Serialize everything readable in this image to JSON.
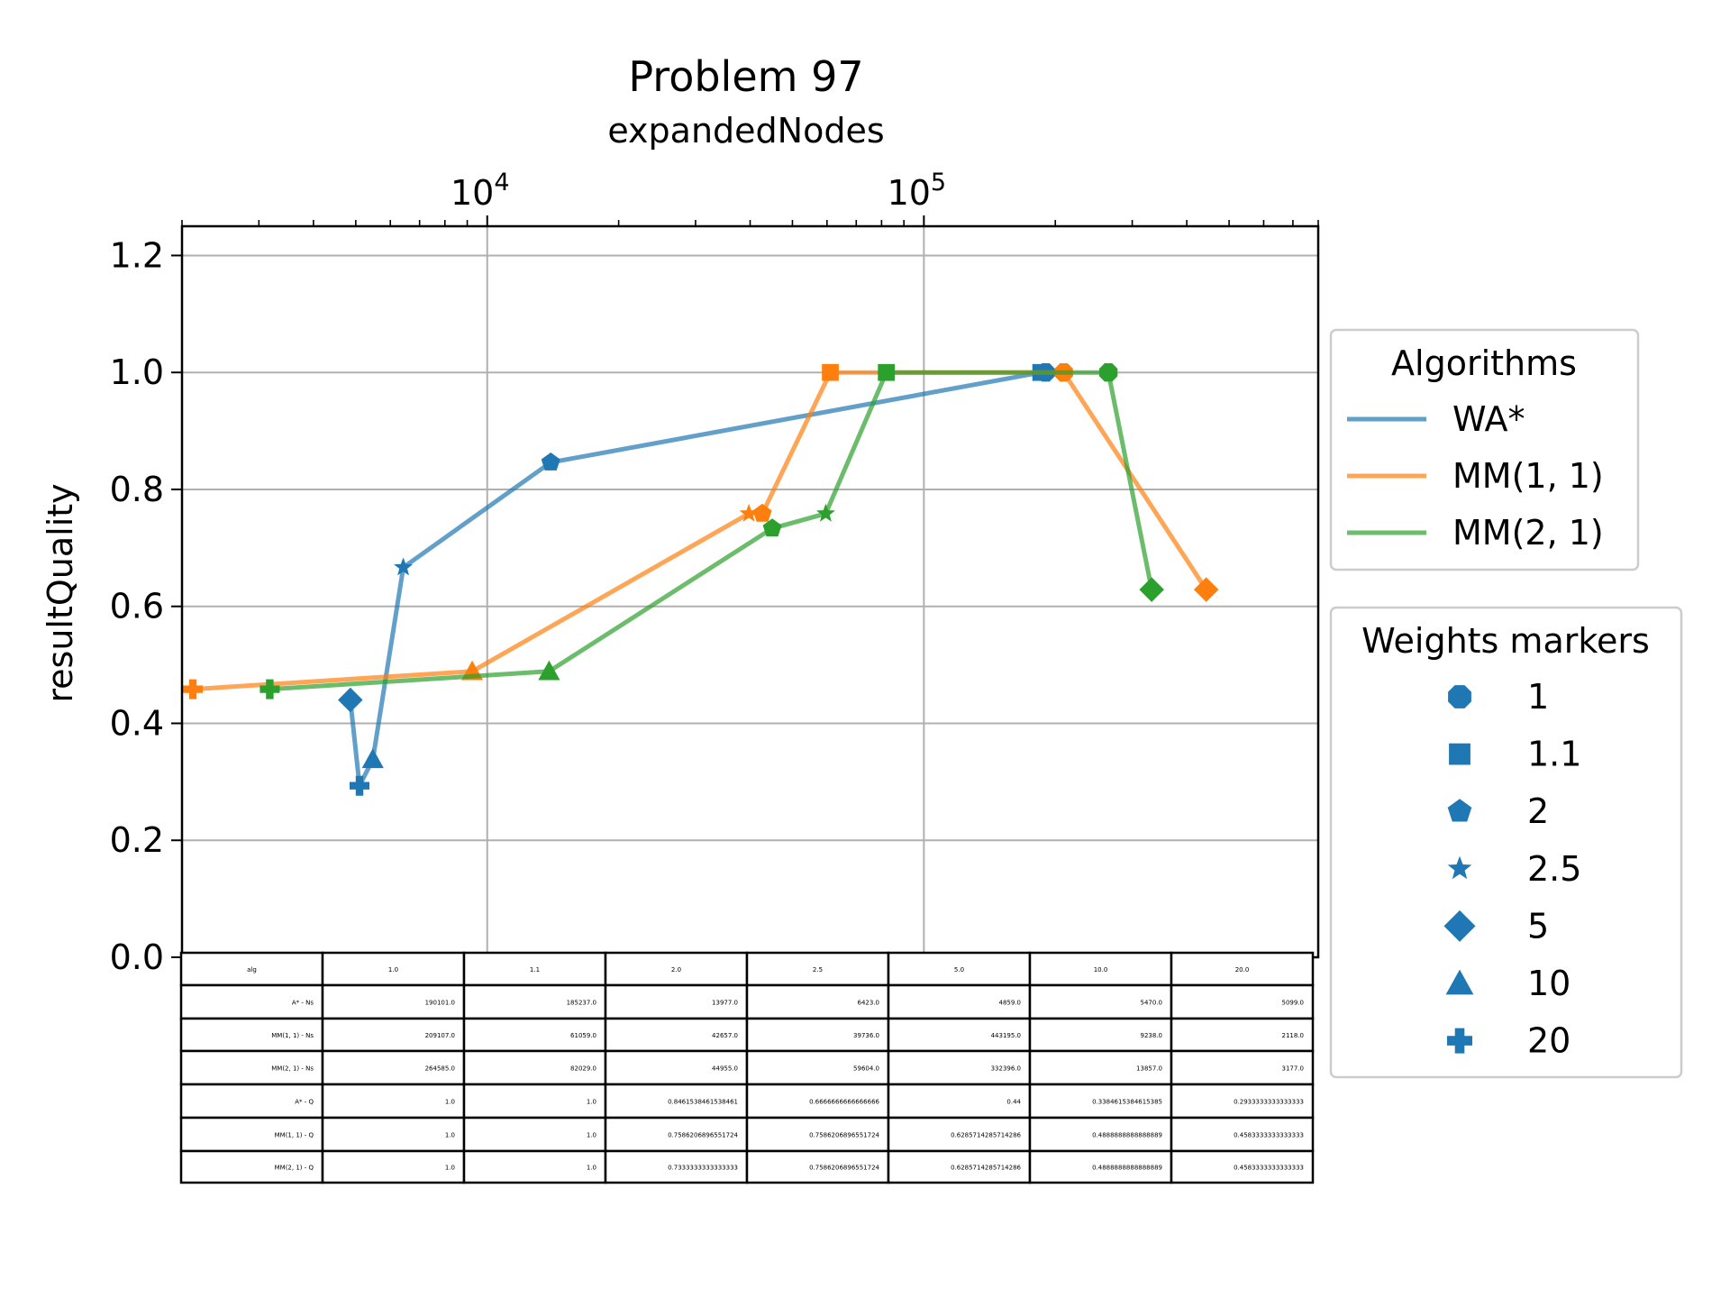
{
  "chart_data": {
    "type": "line",
    "title": "Problem 97",
    "xlabel": "expandedNodes",
    "ylabel": "resultQuality",
    "xscale": "log",
    "xlim": [
      2000,
      800000
    ],
    "ylim": [
      0.0,
      1.25
    ],
    "x_ticks": [
      10000,
      100000
    ],
    "x_tick_labels": [
      {
        "base": "10",
        "exp": "4"
      },
      {
        "base": "10",
        "exp": "5"
      }
    ],
    "y_ticks": [
      "0.0",
      "0.2",
      "0.4",
      "0.6",
      "0.8",
      "1.0",
      "1.2"
    ],
    "grid": true,
    "x_axis_position": "top",
    "weights": [
      1,
      1.1,
      2,
      2.5,
      5,
      10,
      20
    ],
    "series": [
      {
        "name": "WA*",
        "color": "#1f77b4",
        "x": [
          190101,
          185237,
          13977,
          6423,
          4859,
          5470,
          5099
        ],
        "y": [
          1.0,
          1.0,
          0.8461538461538461,
          0.6666666666666666,
          0.44,
          0.3384615384615385,
          0.2933333333333333
        ]
      },
      {
        "name": "MM(1, 1)",
        "color": "#ff7f0e",
        "x": [
          209107,
          61059,
          42657,
          39736,
          443195,
          9238,
          2118
        ],
        "y": [
          1.0,
          1.0,
          0.7586206896551724,
          0.7586206896551724,
          0.6285714285714286,
          0.4888888888888889,
          0.4583333333333333
        ]
      },
      {
        "name": "MM(2, 1)",
        "color": "#2ca02c",
        "x": [
          264585,
          82029,
          44955,
          59604,
          332396,
          13857,
          3177
        ],
        "y": [
          1.0,
          1.0,
          0.7333333333333333,
          0.7586206896551724,
          0.6285714285714286,
          0.4888888888888889,
          0.4583333333333333
        ]
      }
    ],
    "legend_algorithms": {
      "title": "Algorithms",
      "placement": "right",
      "entries": [
        "WA*",
        "MM(1, 1)",
        "MM(2, 1)"
      ]
    },
    "legend_weights": {
      "title": "Weights markers",
      "placement": "right",
      "marker_color": "#1f77b4",
      "entries": [
        {
          "label": "1",
          "marker": "octagon"
        },
        {
          "label": "1.1",
          "marker": "square"
        },
        {
          "label": "2",
          "marker": "pentagon"
        },
        {
          "label": "2.5",
          "marker": "star"
        },
        {
          "label": "5",
          "marker": "diamond"
        },
        {
          "label": "10",
          "marker": "triangle"
        },
        {
          "label": "20",
          "marker": "plus"
        }
      ]
    },
    "table": {
      "header": [
        "alg",
        "1.0",
        "1.1",
        "2.0",
        "2.5",
        "5.0",
        "10.0",
        "20.0"
      ],
      "rows": [
        [
          "A* - Ns",
          "190101.0",
          "185237.0",
          "13977.0",
          "6423.0",
          "4859.0",
          "5470.0",
          "5099.0"
        ],
        [
          "MM(1, 1) - Ns",
          "209107.0",
          "61059.0",
          "42657.0",
          "39736.0",
          "443195.0",
          "9238.0",
          "2118.0"
        ],
        [
          "MM(2, 1) - Ns",
          "264585.0",
          "82029.0",
          "44955.0",
          "59604.0",
          "332396.0",
          "13857.0",
          "3177.0"
        ],
        [
          "A* - Q",
          "1.0",
          "1.0",
          "0.8461538461538461",
          "0.6666666666666666",
          "0.44",
          "0.3384615384615385",
          "0.2933333333333333"
        ],
        [
          "MM(1, 1) - Q",
          "1.0",
          "1.0",
          "0.7586206896551724",
          "0.7586206896551724",
          "0.6285714285714286",
          "0.4888888888888889",
          "0.4583333333333333"
        ],
        [
          "MM(2, 1) - Q",
          "1.0",
          "1.0",
          "0.7333333333333333",
          "0.7586206896551724",
          "0.6285714285714286",
          "0.4888888888888889",
          "0.4583333333333333"
        ]
      ]
    }
  }
}
